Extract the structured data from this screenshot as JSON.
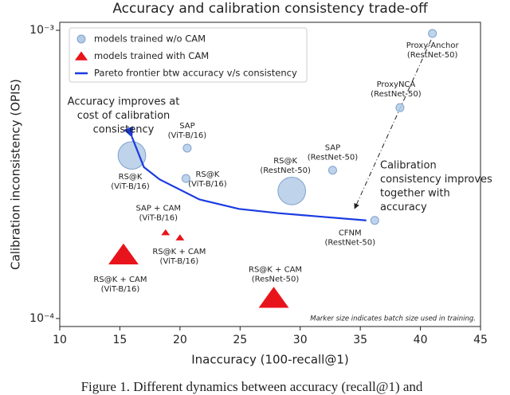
{
  "chart_data": {
    "type": "scatter",
    "title": "Accuracy and calibration consistency trade-off",
    "xlabel": "Inaccuracy (100-recall@1)",
    "ylabel": "Calibration inconsistency (OPIS)",
    "xlim": [
      10,
      45
    ],
    "xticks": [
      10,
      15,
      20,
      25,
      30,
      35,
      40,
      45
    ],
    "ylim": [
      9.38e-05,
      0.001066
    ],
    "yscale": "log",
    "yticks": [
      {
        "value": 0.0001,
        "label": "10⁻⁴"
      },
      {
        "value": 0.001,
        "label": "10⁻³"
      }
    ],
    "legend": "upper left",
    "series": [
      {
        "name": "models trained w/o CAM",
        "color": "#b4cbe6",
        "marker": "o",
        "x": [
          41,
          38.3,
          20.6,
          16,
          20.5,
          32.7,
          29.3,
          36.2
        ],
        "values": [
          0.000975,
          0.000539,
          0.00039,
          0.000368,
          0.000306,
          0.000327,
          0.000277,
          0.000219
        ],
        "sizes": [
          1,
          1,
          1,
          12,
          1,
          1,
          12,
          1
        ],
        "labels": [
          [
            "Proxy-Anchor",
            "(RestNet-50)"
          ],
          [
            "ProxyNCA",
            "(RestNet-50)"
          ],
          [
            "SAP",
            "(ViT-B/16)"
          ],
          [
            "RS@K",
            "(ViT-B/16)"
          ],
          [
            "RS@K",
            "(ViT-B/16)"
          ],
          [
            "SAP",
            "(RestNet-50)"
          ],
          [
            "RS@K",
            "(RestNet-50)"
          ],
          [
            "CFNM",
            "(RestNet-50)"
          ]
        ]
      },
      {
        "name": "models trained with CAM",
        "color": "#e8141c",
        "marker": "^",
        "x": [
          15.3,
          18.8,
          20,
          27.8
        ],
        "values": [
          0.000164,
          0.000198,
          0.00019,
          0.000116
        ],
        "sizes": [
          12,
          1,
          1,
          12
        ],
        "labels": [
          [
            "RS@K + CAM",
            "(ViT-B/16)"
          ],
          [
            "SAP + CAM",
            "(ViT-B/16)"
          ],
          [
            "RS@K + CAM",
            "(ViT-B/16)"
          ],
          [
            "RS@K + CAM",
            "(ResNet-50)"
          ]
        ]
      },
      {
        "name": "Pareto frontier btw accuracy v/s consistency",
        "color": "#1a3be0",
        "marker": "line",
        "x": [
          16,
          17,
          18.3,
          21.6,
          24.9,
          28.2,
          31.5,
          35.5
        ],
        "values": [
          0.000427,
          0.000335,
          0.000304,
          0.000259,
          0.00024,
          0.000232,
          0.000226,
          0.000219
        ]
      }
    ],
    "annotations": [
      [
        "Accuracy improves at",
        "cost of calibration",
        "consistency"
      ],
      [
        "Calibration",
        "consistency improves",
        "together with",
        "accuracy"
      ]
    ],
    "note": "Marker size indicates batch size used in training."
  },
  "caption": "Figure 1. Different dynamics between accuracy (recall@1) and"
}
